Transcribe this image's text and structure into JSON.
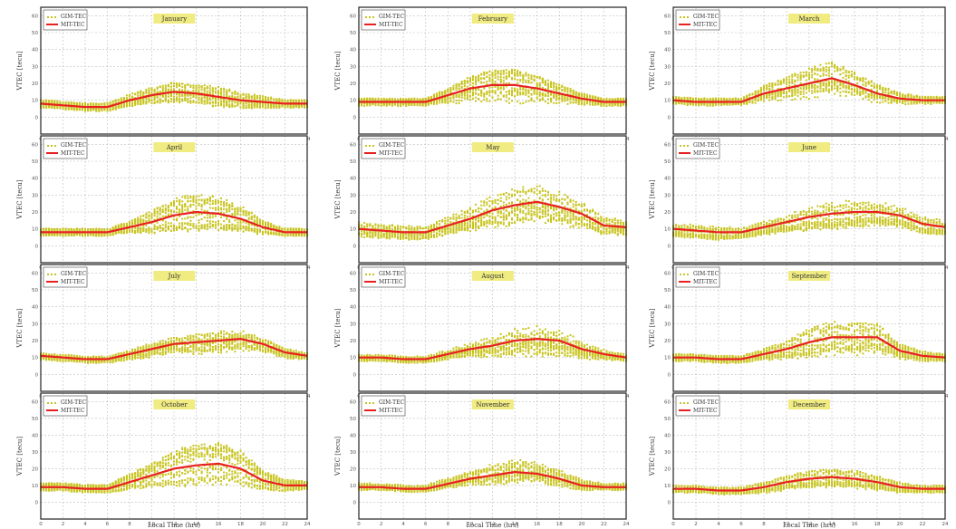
{
  "chart_data": {
    "type": "line",
    "layout": "4 rows x 3 columns of panels",
    "xlabel": "Local Time (hrs)",
    "ylabel": "VTEC [tecu]",
    "x_ticks": [
      0,
      2,
      4,
      6,
      8,
      10,
      12,
      14,
      16,
      18,
      20,
      22,
      24
    ],
    "y_ticks": [
      0,
      10,
      20,
      30,
      40,
      50,
      60
    ],
    "xlim": [
      0,
      24
    ],
    "ylim": [
      -10,
      65
    ],
    "grid": true,
    "legend_position": "top-left",
    "series_names": [
      "GIM-TEC",
      "MIT-TEC"
    ],
    "colors": {
      "observed": "#c8c41e",
      "model": "#e82020",
      "label_box": "#f0ec82"
    },
    "x": [
      0,
      2,
      4,
      6,
      8,
      10,
      12,
      14,
      16,
      18,
      20,
      22,
      24
    ],
    "panels": [
      {
        "month": "January",
        "mean": [
          8,
          7,
          6,
          6,
          10,
          13,
          15,
          14,
          12,
          10,
          9,
          8,
          8
        ],
        "spread": [
          2,
          2,
          2,
          2,
          3,
          4,
          5,
          5,
          5,
          4,
          3,
          2,
          2
        ]
      },
      {
        "month": "February",
        "mean": [
          9,
          9,
          9,
          9,
          13,
          17,
          19,
          19,
          17,
          14,
          11,
          9,
          9
        ],
        "spread": [
          2,
          2,
          2,
          2,
          4,
          7,
          9,
          9,
          7,
          5,
          3,
          2,
          2
        ]
      },
      {
        "month": "March",
        "mean": [
          10,
          9,
          9,
          9,
          14,
          17,
          20,
          23,
          19,
          14,
          11,
          10,
          10
        ],
        "spread": [
          2,
          2,
          2,
          2,
          4,
          6,
          8,
          9,
          7,
          5,
          3,
          2,
          2
        ]
      },
      {
        "month": "April",
        "mean": [
          8,
          8,
          8,
          8,
          11,
          14,
          18,
          20,
          19,
          16,
          11,
          8,
          8
        ],
        "spread": [
          2,
          2,
          2,
          2,
          3,
          6,
          9,
          10,
          9,
          7,
          4,
          2,
          2
        ]
      },
      {
        "month": "May",
        "mean": [
          10,
          9,
          8,
          8,
          12,
          16,
          21,
          24,
          26,
          23,
          19,
          12,
          11
        ],
        "spread": [
          4,
          4,
          4,
          4,
          5,
          7,
          9,
          10,
          10,
          9,
          8,
          5,
          4
        ]
      },
      {
        "month": "June",
        "mean": [
          10,
          9,
          8,
          8,
          11,
          14,
          17,
          19,
          20,
          20,
          18,
          13,
          11
        ],
        "spread": [
          4,
          4,
          4,
          3,
          4,
          5,
          7,
          8,
          8,
          7,
          6,
          5,
          4
        ]
      },
      {
        "month": "July",
        "mean": [
          11,
          10,
          9,
          9,
          12,
          15,
          18,
          19,
          20,
          21,
          18,
          13,
          11
        ],
        "spread": [
          2,
          2,
          2,
          2,
          3,
          4,
          5,
          6,
          6,
          6,
          4,
          3,
          2
        ]
      },
      {
        "month": "August",
        "mean": [
          10,
          10,
          9,
          9,
          12,
          15,
          17,
          20,
          21,
          20,
          15,
          12,
          10
        ],
        "spread": [
          2,
          2,
          2,
          2,
          3,
          4,
          6,
          8,
          9,
          8,
          5,
          3,
          2
        ]
      },
      {
        "month": "September",
        "mean": [
          10,
          10,
          9,
          9,
          12,
          15,
          19,
          22,
          22,
          22,
          14,
          11,
          10
        ],
        "spread": [
          2,
          2,
          2,
          2,
          3,
          5,
          8,
          9,
          9,
          8,
          4,
          3,
          2
        ]
      },
      {
        "month": "October",
        "mean": [
          9,
          9,
          8,
          8,
          12,
          16,
          20,
          22,
          23,
          20,
          13,
          10,
          10
        ],
        "spread": [
          2,
          2,
          2,
          2,
          4,
          6,
          9,
          11,
          11,
          9,
          5,
          3,
          2
        ]
      },
      {
        "month": "November",
        "mean": [
          9,
          9,
          8,
          8,
          11,
          14,
          16,
          18,
          17,
          14,
          10,
          9,
          9
        ],
        "spread": [
          2,
          2,
          2,
          2,
          3,
          4,
          6,
          7,
          6,
          5,
          3,
          2,
          2
        ]
      },
      {
        "month": "December",
        "mean": [
          8,
          8,
          7,
          7,
          9,
          12,
          14,
          15,
          14,
          12,
          9,
          8,
          8
        ],
        "spread": [
          2,
          2,
          2,
          2,
          3,
          4,
          5,
          5,
          5,
          4,
          3,
          2,
          2
        ]
      }
    ]
  }
}
